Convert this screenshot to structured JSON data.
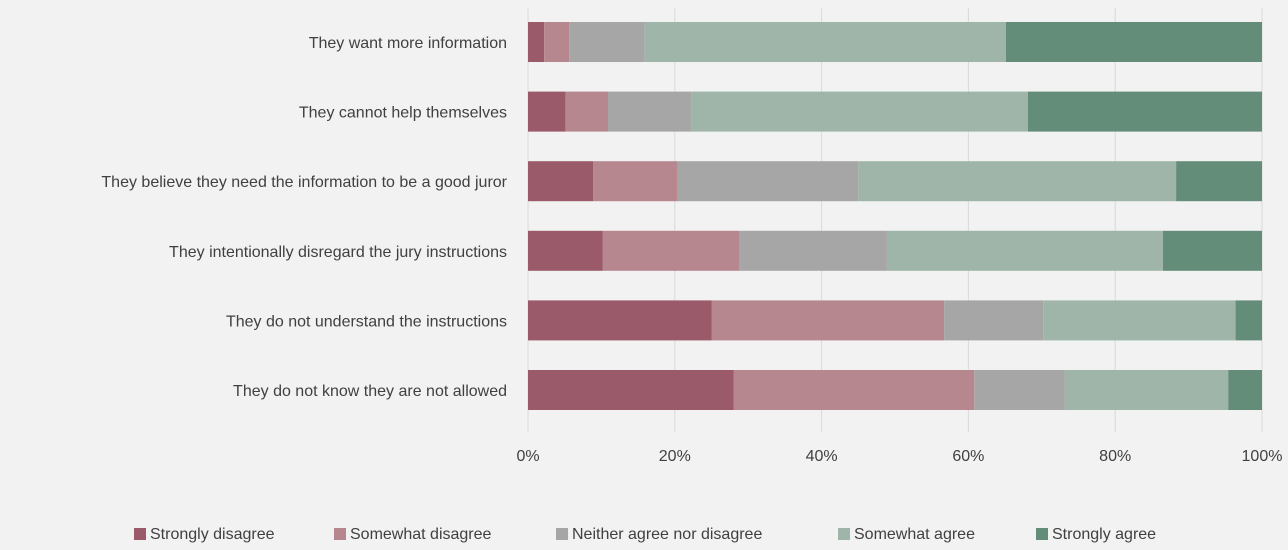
{
  "chart_data": {
    "type": "bar",
    "orientation": "horizontal",
    "stacked": "percent",
    "categories": [
      "They want more information",
      "They cannot help themselves",
      "They believe they need the information to be a good juror",
      "They intentionally disregard the jury instructions",
      "They do not understand the instructions",
      "They do not know they are not allowed"
    ],
    "series": [
      {
        "name": "Strongly disagree",
        "color": "#9a5a69",
        "values": [
          2.2,
          5.1,
          8.9,
          10.2,
          25.0,
          28.0
        ]
      },
      {
        "name": "Somewhat disagree",
        "color": "#b6878f",
        "values": [
          3.4,
          5.8,
          11.5,
          18.6,
          31.7,
          32.8
        ]
      },
      {
        "name": "Neither agree nor disagree",
        "color": "#a6a6a6",
        "values": [
          10.3,
          11.4,
          24.6,
          20.1,
          13.5,
          12.3
        ]
      },
      {
        "name": "Somewhat agree",
        "color": "#9fb5a9",
        "values": [
          49.2,
          45.8,
          43.3,
          37.6,
          26.2,
          22.3
        ]
      },
      {
        "name": "Strongly agree",
        "color": "#638d78",
        "values": [
          34.9,
          31.9,
          11.7,
          13.5,
          3.6,
          4.6
        ]
      }
    ],
    "xlim": [
      0,
      100
    ],
    "x_ticks": [
      "0%",
      "20%",
      "40%",
      "60%",
      "80%",
      "100%"
    ],
    "grid": true,
    "legend_position": "bottom"
  }
}
